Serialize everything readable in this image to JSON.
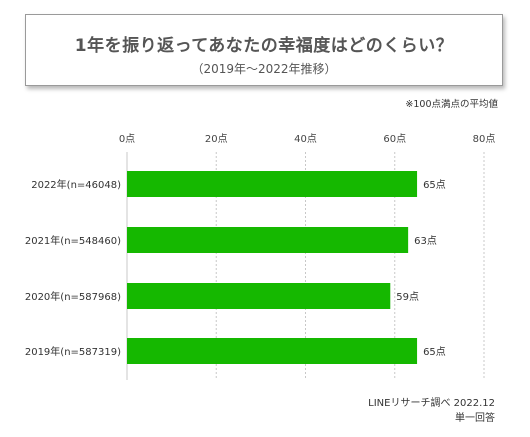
{
  "title": "1年を振り返ってあなたの幸福度はどのくらい？",
  "subtitle": "（2019年〜2022年推移）",
  "note": "※100点満点の平均値",
  "source_line1": "LINEリサーチ調べ 2022.12",
  "source_line2": "単一回答",
  "colors": {
    "bar": "#15b800",
    "grid": "#c8c8c8"
  },
  "chart_data": {
    "type": "bar",
    "orientation": "horizontal",
    "categories": [
      "2022年(n=46048)",
      "2021年(n=548460)",
      "2020年(n=587968)",
      "2019年(n=587319)"
    ],
    "values": [
      65,
      63,
      59,
      65
    ],
    "value_labels": [
      "65点",
      "63点",
      "59点",
      "65点"
    ],
    "xlim": [
      0,
      80
    ],
    "ticks": [
      0,
      20,
      40,
      60,
      80
    ],
    "tick_labels": [
      "0点",
      "20点",
      "40点",
      "60点",
      "80点"
    ],
    "grid": true
  }
}
